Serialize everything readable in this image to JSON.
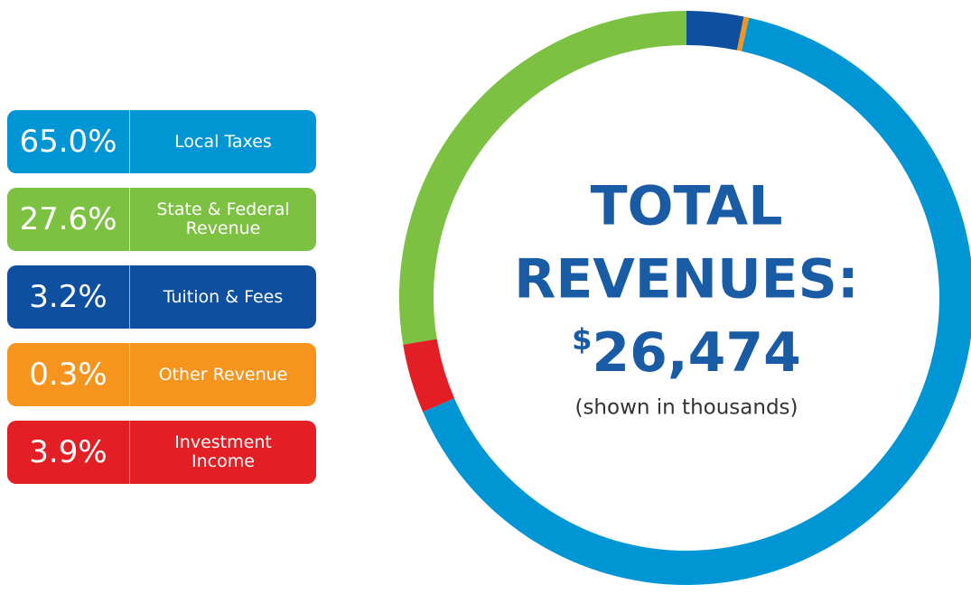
{
  "chart_data": {
    "type": "donut",
    "categories": [
      "Local Taxes",
      "State & Federal Revenue",
      "Tuition & Fees",
      "Other Revenue",
      "Investment Income"
    ],
    "values": [
      65.0,
      27.6,
      3.2,
      0.3,
      3.9
    ],
    "value_labels": [
      "65.0%",
      "27.6%",
      "3.2%",
      "0.3%",
      "3.9%"
    ],
    "colors": [
      "#0096d6",
      "#7dc142",
      "#0e4fa0",
      "#f7941d",
      "#e31e24"
    ],
    "center_text": {
      "line1": "TOTAL",
      "line2": "REVENUES:",
      "currency": "$",
      "amount": "26,474",
      "note": "(shown in thousands)"
    }
  }
}
